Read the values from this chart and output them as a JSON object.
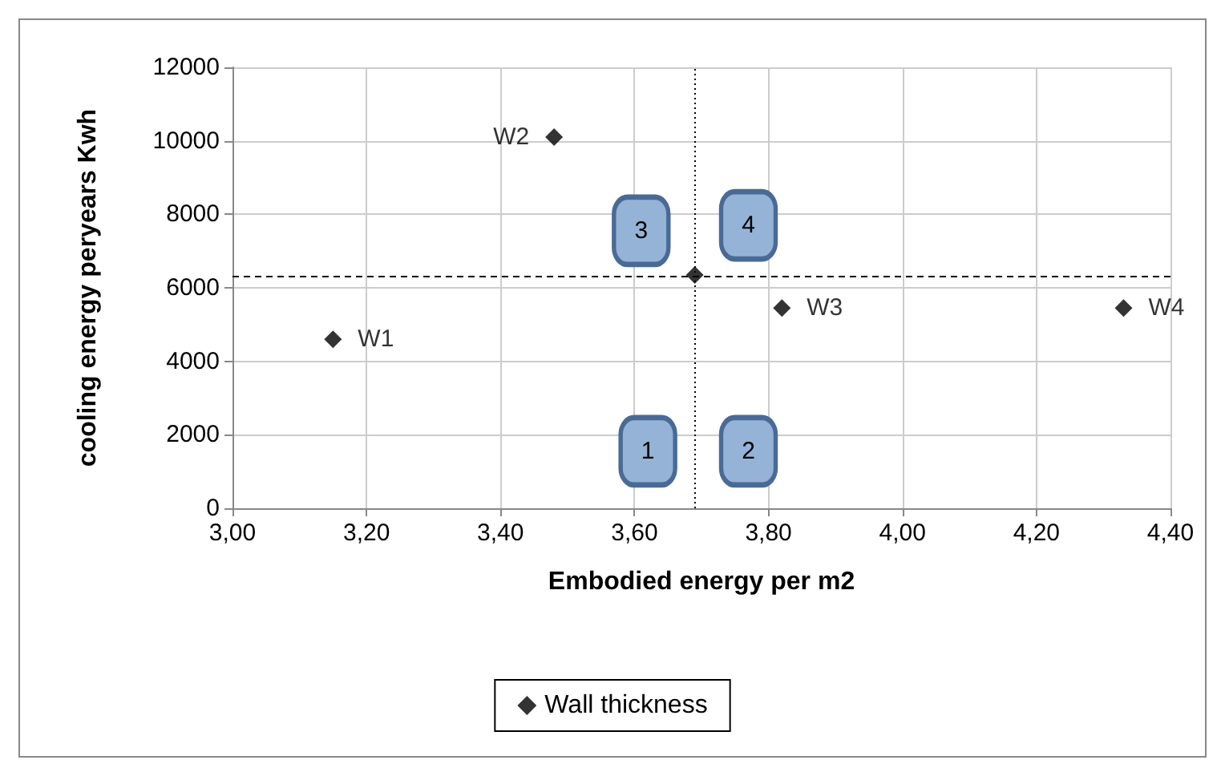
{
  "chart_data": {
    "type": "scatter",
    "xlabel": "Embodied energy per m2",
    "ylabel": "cooling energy peryears Kwh",
    "x": [
      3.15,
      3.48,
      3.69,
      3.82,
      4.33
    ],
    "series": [
      {
        "name": "Wall thickness",
        "color": "#000000",
        "values": [
          4600,
          10100,
          6350,
          5450,
          5450
        ],
        "value_labels": [
          "W1",
          "W2",
          null,
          "W3",
          "W4"
        ]
      }
    ],
    "xlim": [
      3,
      4.4
    ],
    "xticks": [
      {
        "value": 3,
        "label": "3,00"
      },
      {
        "value": 3.2,
        "label": "3,20"
      },
      {
        "value": 3.4,
        "label": "3,40"
      },
      {
        "value": 3.6,
        "label": "3,60"
      },
      {
        "value": 3.8,
        "label": "3,80"
      },
      {
        "value": 4,
        "label": "4,00"
      },
      {
        "value": 4.2,
        "label": "4,20"
      },
      {
        "value": 4.4,
        "label": "4,40"
      }
    ],
    "ylim": [
      0,
      12000
    ],
    "yticks": [
      0,
      2000,
      4000,
      6000,
      8000,
      10000,
      12000
    ],
    "ref_lines": [
      {
        "axis": "x",
        "value": 3.69,
        "line_style": "dotted",
        "color": "#000000"
      },
      {
        "axis": "y",
        "value": 6300,
        "line_style": "dashed",
        "color": "#000000"
      }
    ],
    "annotations": [
      {
        "text": "1",
        "x": 3.62,
        "y": 1550
      },
      {
        "text": "2",
        "x": 3.77,
        "y": 1550
      },
      {
        "text": "3",
        "x": 3.61,
        "y": 7550
      },
      {
        "text": "4",
        "x": 3.77,
        "y": 7700
      }
    ],
    "grid": true,
    "legend": "bottom",
    "marker": "diamond"
  }
}
